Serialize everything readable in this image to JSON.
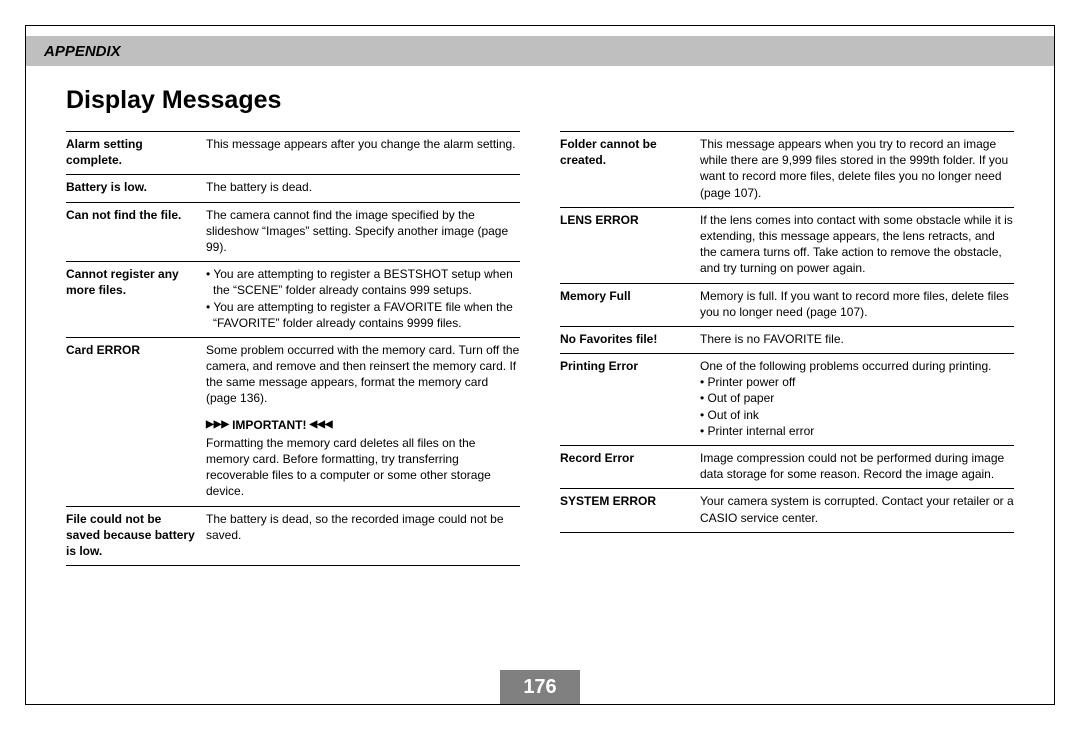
{
  "header": {
    "section": "APPENDIX"
  },
  "title": "Display Messages",
  "page_number": "176",
  "left": [
    {
      "term": "Alarm setting complete.",
      "desc": "This message appears after you change the alarm setting."
    },
    {
      "term": "Battery is low.",
      "desc": "The battery is dead."
    },
    {
      "term": "Can not find the file.",
      "desc": "The camera cannot find the image specified by the slideshow “Images” setting. Specify another image (page 99)."
    },
    {
      "term": "Cannot register any more files.",
      "bullets": [
        "You are attempting to register a BESTSHOT setup when the “SCENE” folder already contains 999 setups.",
        "You are attempting to register a FAVORITE file when the “FAVORITE” folder already contains 9999 files."
      ]
    },
    {
      "term": "Card ERROR",
      "desc": "Some problem occurred with the memory card. Turn off the camera, and remove and then reinsert the memory card. If the same message appears, format the memory card (page 136).",
      "important": {
        "label": "IMPORTANT!",
        "text": "Formatting the memory card deletes all files on the memory card. Before formatting, try transferring recoverable files to a computer or some other storage device."
      }
    },
    {
      "term": "File could not be saved because battery is low.",
      "desc": "The battery is dead, so the recorded image could not be saved."
    }
  ],
  "right": [
    {
      "term": "Folder cannot be created.",
      "desc": "This message appears when you try to record an image while there are 9,999 files stored in the 999th folder. If you want to record more files, delete files you no longer need (page 107)."
    },
    {
      "term": "LENS ERROR",
      "desc": "If the lens comes into contact with some obstacle while it is extending, this message appears, the lens retracts, and the camera turns off. Take action to remove the obstacle, and try turning on power again."
    },
    {
      "term": "Memory Full",
      "desc": "Memory is full. If you want to record more files, delete files you no longer need (page 107)."
    },
    {
      "term": "No Favorites file!",
      "desc": "There is no FAVORITE file."
    },
    {
      "term": "Printing Error",
      "desc": "One of the following problems occurred during printing.",
      "bullets": [
        "Printer power off",
        "Out of paper",
        "Out of ink",
        "Printer internal error"
      ]
    },
    {
      "term": "Record Error",
      "desc": "Image compression could not be performed during image data storage for some reason. Record the image again."
    },
    {
      "term": "SYSTEM ERROR",
      "desc": "Your camera system is corrupted. Contact your retailer or a CASIO service center."
    }
  ]
}
